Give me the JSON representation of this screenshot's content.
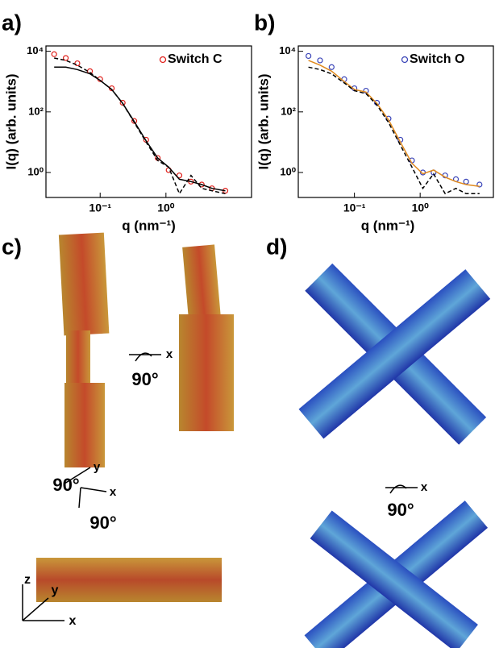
{
  "panel_labels": [
    "a)",
    "b)",
    "c)",
    "d)"
  ],
  "chart_data": [
    {
      "type": "line",
      "x_label": "q (nm⁻¹)",
      "y_label": "I(q) (arb. units)",
      "xlog": true,
      "ylog": true,
      "xlim": [
        0.015,
        20
      ],
      "ylim": [
        0.15,
        15000
      ],
      "xticks": [
        {
          "value": 0.1,
          "label": "10⁻¹"
        },
        {
          "value": 1,
          "label": "10⁰"
        }
      ],
      "yticks": [
        {
          "value": 1,
          "label": "10⁰"
        },
        {
          "value": 100,
          "label": "10²"
        },
        {
          "value": 10000,
          "label": "10⁴"
        }
      ],
      "legend": "upper right",
      "x": [
        0.02,
        0.03,
        0.045,
        0.07,
        0.1,
        0.15,
        0.22,
        0.33,
        0.5,
        0.75,
        1.1,
        1.6,
        2.4,
        3.5,
        5,
        8
      ],
      "series": [
        {
          "name": "Switch C",
          "color": "#e0201b",
          "style": "markers",
          "values": [
            8000,
            6000,
            4000,
            2200,
            1200,
            600,
            200,
            50,
            12,
            3,
            1.2,
            0.8,
            0.5,
            0.4,
            0.3,
            0.25
          ]
        },
        {
          "color": "#000000",
          "style": "solid",
          "values": [
            3000,
            3000,
            2500,
            1800,
            1100,
            550,
            190,
            48,
            11,
            3,
            1.5,
            0.6,
            0.5,
            0.4,
            0.3,
            0.25
          ]
        },
        {
          "color": "#000000",
          "style": "dashed",
          "values": [
            6000,
            5000,
            3500,
            2000,
            1100,
            550,
            190,
            45,
            10,
            2.5,
            1.5,
            0.2,
            0.8,
            0.3,
            0.25,
            0.2
          ]
        }
      ]
    },
    {
      "type": "line",
      "x_label": "q (nm⁻¹)",
      "y_label": "I(q) (arb. units)",
      "xlog": true,
      "ylog": true,
      "xlim": [
        0.014,
        13
      ],
      "ylim": [
        0.15,
        15000
      ],
      "xticks": [
        {
          "value": 0.1,
          "label": "10⁻¹"
        },
        {
          "value": 1,
          "label": "10⁰"
        }
      ],
      "yticks": [
        {
          "value": 1,
          "label": "10⁰"
        },
        {
          "value": 100,
          "label": "10²"
        },
        {
          "value": 10000,
          "label": "10⁴"
        }
      ],
      "legend": "upper right",
      "x": [
        0.02,
        0.03,
        0.045,
        0.07,
        0.1,
        0.15,
        0.22,
        0.33,
        0.5,
        0.75,
        1.1,
        1.6,
        2.4,
        3.5,
        5,
        8
      ],
      "series": [
        {
          "name": "Switch O",
          "color": "#3b45b8",
          "style": "markers",
          "values": [
            7000,
            5000,
            3000,
            1200,
            600,
            500,
            200,
            60,
            12,
            2.5,
            1,
            1,
            0.8,
            0.6,
            0.5,
            0.4
          ]
        },
        {
          "color": "#e08a1e",
          "style": "solid",
          "values": [
            5000,
            3500,
            2200,
            1000,
            550,
            450,
            190,
            55,
            10,
            2,
            0.9,
            1.2,
            0.7,
            0.5,
            0.4,
            0.35
          ]
        },
        {
          "color": "#000000",
          "style": "dashed",
          "values": [
            3000,
            2500,
            1800,
            900,
            500,
            400,
            170,
            45,
            8,
            1.5,
            0.3,
            0.9,
            0.2,
            0.3,
            0.2,
            0.2
          ]
        }
      ]
    }
  ],
  "annotations": [
    "x",
    "90°",
    "90°",
    "y",
    "x",
    "90°",
    "z",
    "y",
    "x",
    "x",
    "90°"
  ]
}
